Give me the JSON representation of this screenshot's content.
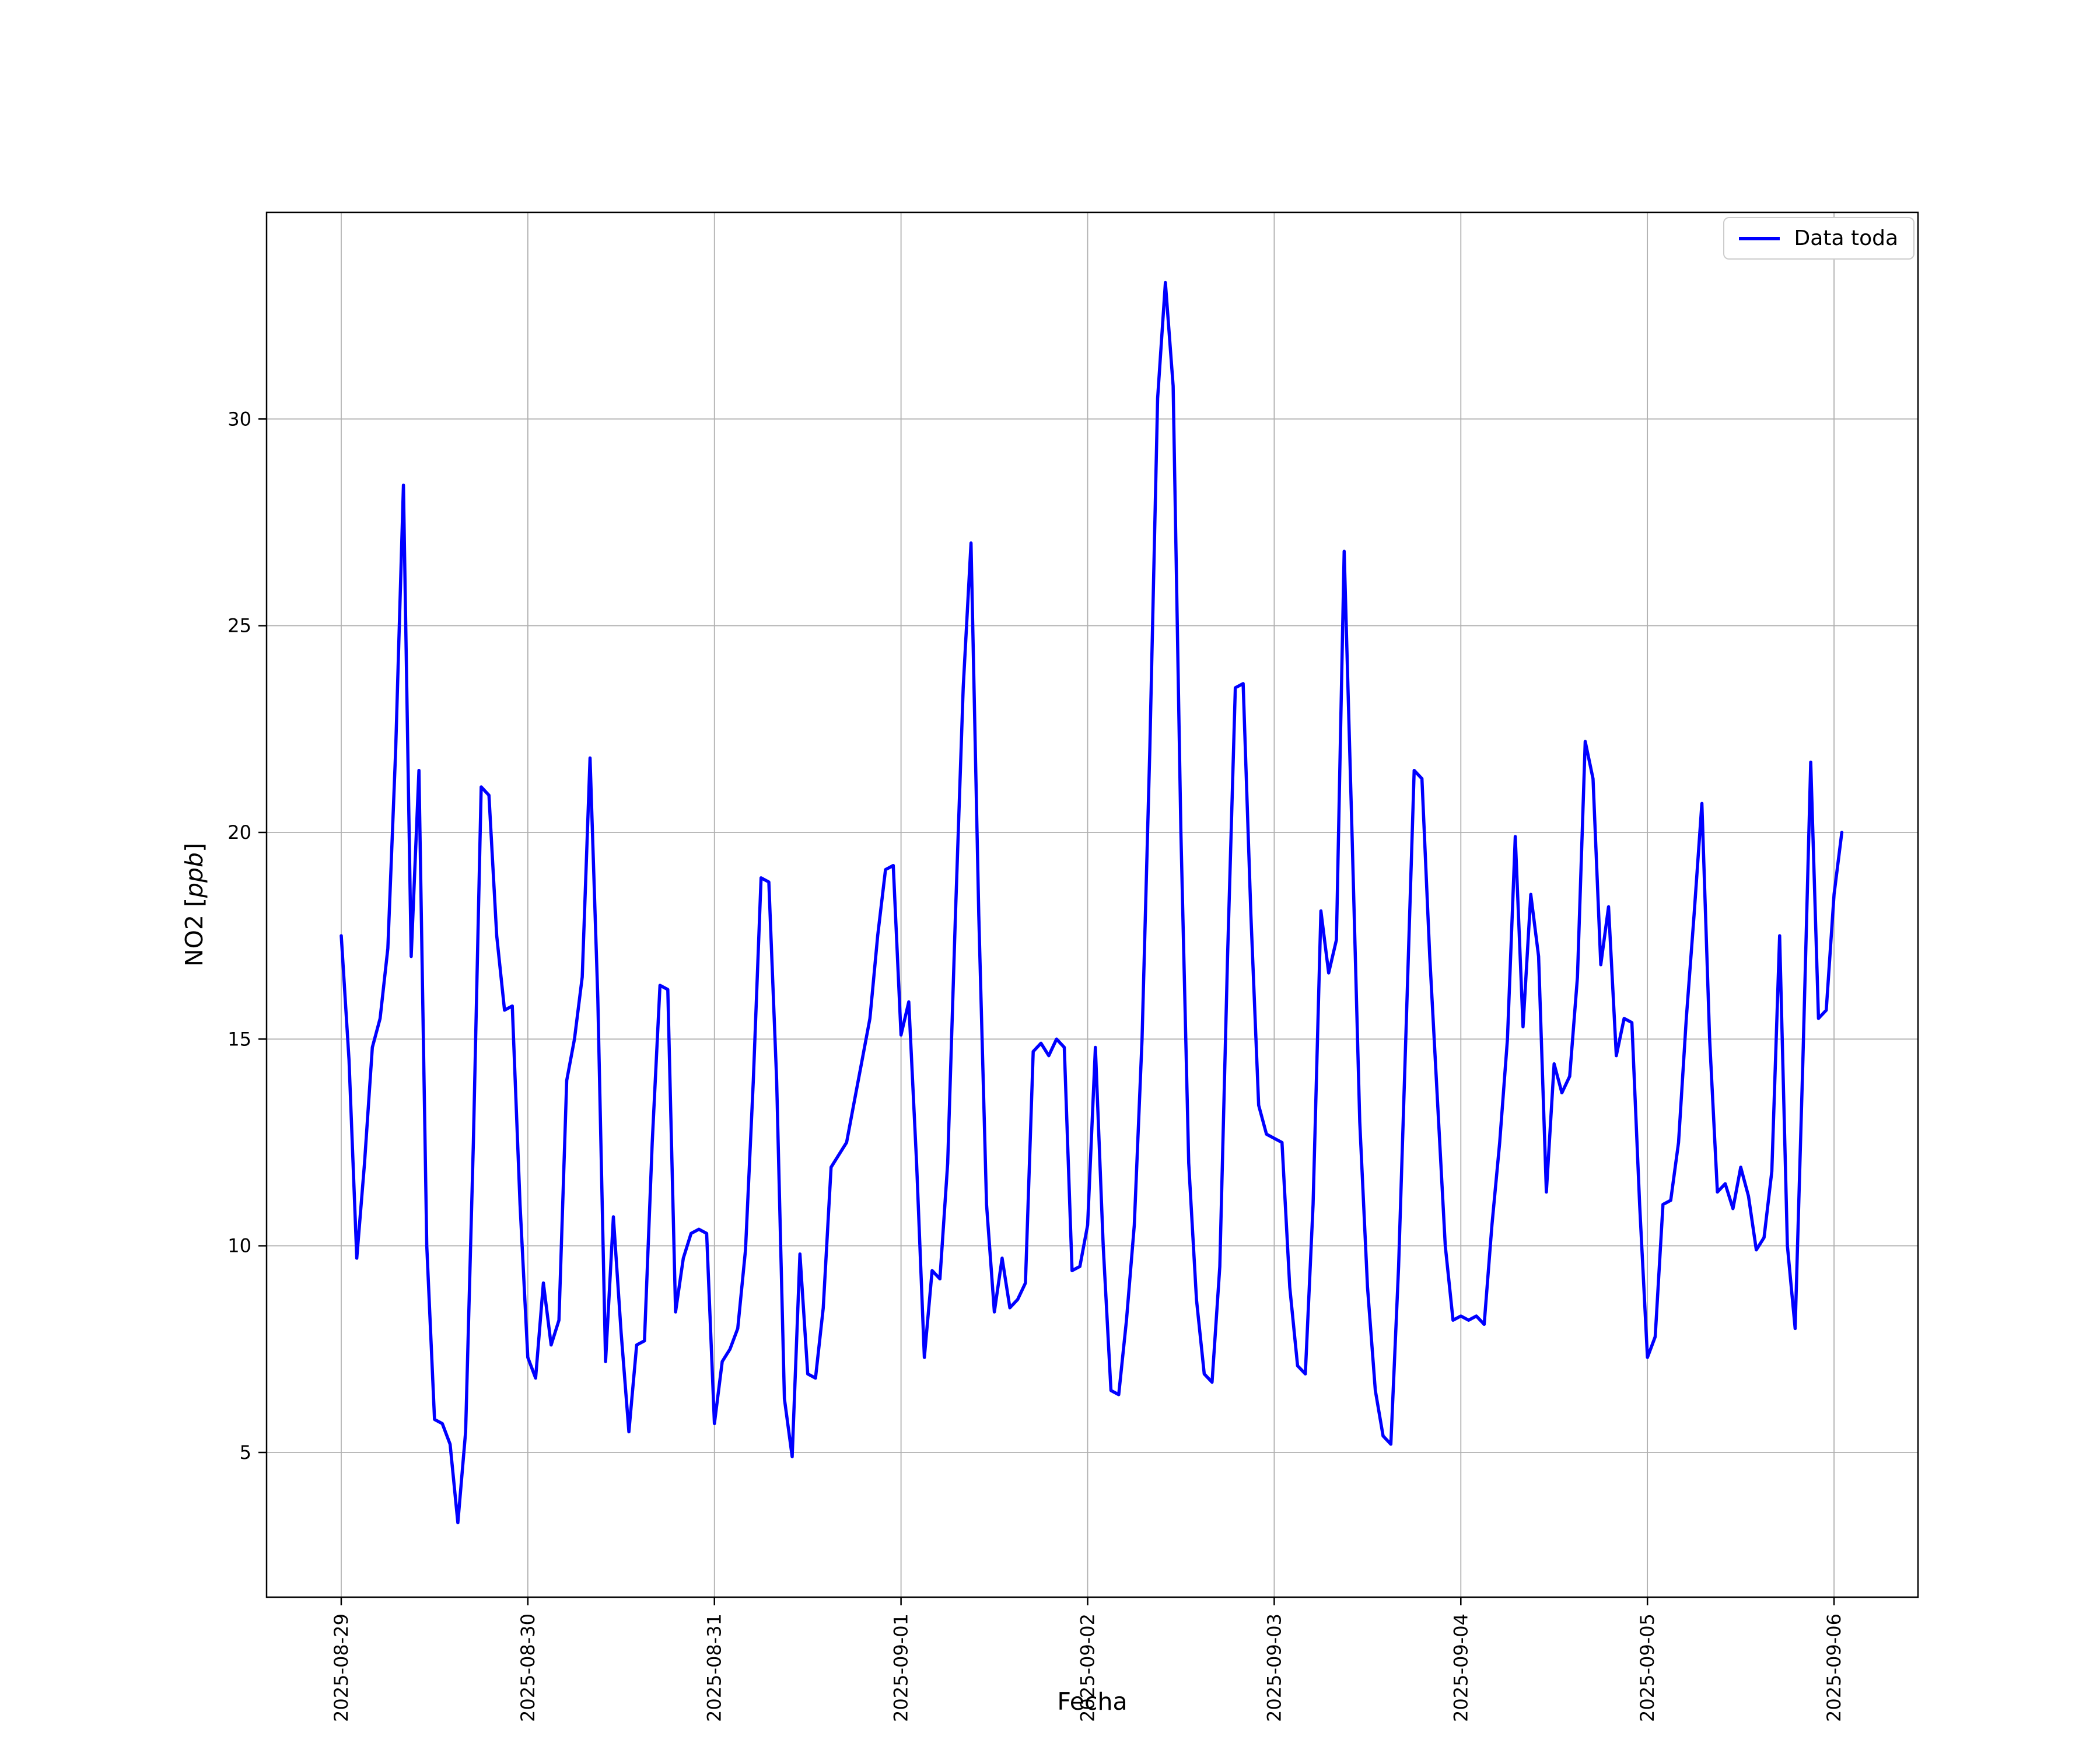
{
  "figure": {
    "background": "#ffffff"
  },
  "chart_data": {
    "type": "line",
    "title": "",
    "xlabel": "Fecha",
    "ylabel": {
      "prefix": "NO2 [",
      "italic": "ppb",
      "suffix": "]"
    },
    "legend": {
      "position": "upper right",
      "entries": [
        {
          "label": "Data toda",
          "color": "#0000ff"
        }
      ]
    },
    "grid": true,
    "grid_color": "#b0b0b0",
    "line_color": "#0000ff",
    "x_start_date": "2025-08-29",
    "interval_hours": 1,
    "x_tick_labels": [
      "2025-08-29",
      "2025-08-30",
      "2025-08-31",
      "2025-09-01",
      "2025-09-02",
      "2025-09-03",
      "2025-09-04",
      "2025-09-05",
      "2025-09-06"
    ],
    "y_ticks": [
      5,
      10,
      15,
      20,
      25,
      30
    ],
    "ylim": [
      1.5,
      35
    ],
    "xlim_days": [
      -0.4,
      8.45
    ],
    "series": [
      {
        "name": "Data toda",
        "color": "#0000ff",
        "values": [
          17.5,
          14.5,
          9.7,
          12.0,
          14.8,
          15.5,
          17.2,
          22.0,
          28.4,
          17.0,
          21.5,
          10.0,
          5.8,
          5.7,
          5.2,
          3.3,
          5.5,
          12.5,
          21.1,
          20.9,
          17.5,
          15.7,
          15.8,
          11.0,
          7.3,
          6.8,
          9.1,
          7.6,
          8.2,
          14.0,
          15.0,
          16.5,
          21.8,
          16.0,
          7.2,
          10.7,
          7.9,
          5.5,
          7.6,
          7.7,
          12.5,
          16.3,
          16.2,
          8.4,
          9.7,
          10.3,
          10.4,
          10.3,
          5.7,
          7.2,
          7.5,
          8.0,
          9.9,
          14.0,
          18.9,
          18.8,
          14.0,
          6.3,
          4.9,
          9.8,
          6.9,
          6.8,
          8.5,
          11.9,
          12.2,
          12.5,
          13.5,
          14.5,
          15.5,
          17.5,
          19.1,
          19.2,
          15.1,
          15.9,
          12.0,
          7.3,
          9.4,
          9.2,
          12.0,
          18.0,
          23.5,
          27.0,
          18.0,
          11.0,
          8.4,
          9.7,
          8.5,
          8.7,
          9.1,
          14.7,
          14.9,
          14.6,
          15.0,
          14.8,
          9.4,
          9.5,
          10.5,
          14.8,
          10.0,
          6.5,
          6.4,
          8.2,
          10.5,
          15.0,
          22.0,
          30.5,
          33.3,
          30.8,
          20.0,
          12.0,
          8.7,
          6.9,
          6.7,
          9.5,
          17.0,
          23.5,
          23.6,
          18.0,
          13.4,
          12.7,
          12.6,
          12.5,
          9.0,
          7.1,
          6.9,
          11.0,
          18.1,
          16.6,
          17.4,
          26.8,
          20.0,
          13.0,
          9.0,
          6.5,
          5.4,
          5.2,
          9.5,
          15.5,
          21.5,
          21.3,
          17.0,
          13.5,
          10.0,
          8.2,
          8.3,
          8.2,
          8.3,
          8.1,
          10.5,
          12.5,
          15.0,
          19.9,
          15.3,
          18.5,
          17.0,
          11.3,
          14.4,
          13.7,
          14.1,
          16.5,
          22.2,
          21.3,
          16.8,
          18.2,
          14.6,
          15.5,
          15.4,
          11.0,
          7.3,
          7.8,
          11.0,
          11.1,
          12.5,
          15.5,
          18.0,
          20.7,
          15.0,
          11.3,
          11.5,
          10.9,
          11.9,
          11.2,
          9.9,
          10.2,
          11.8,
          17.5,
          10.0,
          8.0,
          14.5,
          21.7,
          15.5,
          15.7,
          18.5,
          20.0
        ]
      }
    ]
  }
}
